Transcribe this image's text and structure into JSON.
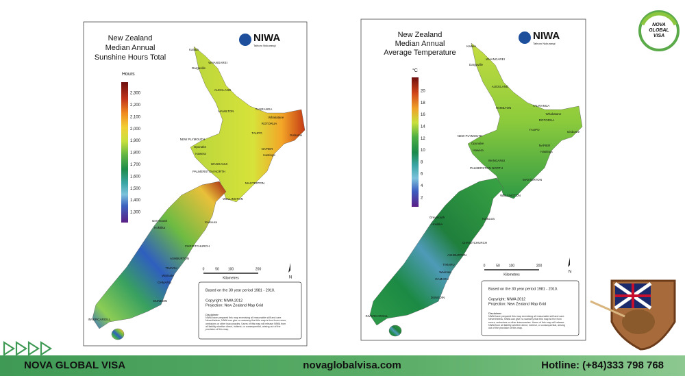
{
  "maps": [
    {
      "title": [
        "New Zealand",
        "Median Annual",
        "Sunshine Hours Total"
      ],
      "logo": {
        "name": "NIWA",
        "tagline": "Taihoro Nukurangi"
      },
      "legend": {
        "unit": "Hours",
        "labels": [
          "2,300",
          "2,200",
          "2,100",
          "2,000",
          "1,900",
          "1,800",
          "1,700",
          "1,600",
          "1,500",
          "1,400",
          "1,300"
        ]
      },
      "places": [
        "Kaitaia",
        "Dargaville",
        "WHANGAREI",
        "AUCKLAND",
        "HAMILTON",
        "TAURANGA",
        "ROTORUA",
        "Whakatane",
        "TAUPO",
        "Gisborne",
        "NEW PLYMOUTH",
        "Opunake",
        "Hawera",
        "WANGANUI",
        "NAPIER",
        "Hastings",
        "PALMERSTON NORTH",
        "MASTERTON",
        "WELLINGTON",
        "Greymouth",
        "Hokitika",
        "Kaikoura",
        "CHRISTCHURCH",
        "ASHBURTON",
        "TIMARU",
        "Waimate",
        "OAMARU",
        "DUNEDIN",
        "INVERCARGILL"
      ],
      "scale": {
        "ticks": [
          "0",
          "50",
          "100",
          "200"
        ],
        "unit": "Kilometres"
      },
      "north": "N",
      "notes": {
        "period": "Based on the 30 year period 1981 - 2010.",
        "copyright": "Copyright: NIWA 2012",
        "projection": "Projection: New Zealand Map Grid",
        "disclaimer_title": "Disclaimer:",
        "disclaimer": "NIWA have prepared this map exercising all reasonable skill and care. Nevertheless, NIWA can give no warranty that this map is free from errors, omissions or other inaccuracies. Users of this map will release NIWA from all liability whether direct, indirect, or consequential, arising out of the provision of this map."
      }
    },
    {
      "title": [
        "New Zealand",
        "Median Annual",
        "Average Temperature"
      ],
      "logo": {
        "name": "NIWA",
        "tagline": "Taihoro Nukurangi"
      },
      "legend": {
        "unit": "°C",
        "labels": [
          "20",
          "18",
          "16",
          "14",
          "12",
          "10",
          "8",
          "6",
          "4",
          "2"
        ]
      },
      "places": [
        "Kaitaia",
        "Dargaville",
        "WHANGAREI",
        "AUCKLAND",
        "HAMILTON",
        "TAURANGA",
        "ROTORUA",
        "Whakatane",
        "TAUPO",
        "Gisborne",
        "NEW PLYMOUTH",
        "Opunake",
        "Hawera",
        "WANGANUI",
        "NAPIER",
        "Hastings",
        "PALMERSTON NORTH",
        "MASTERTON",
        "WELLINGTON",
        "Greymouth",
        "Hokitika",
        "Kaikoura",
        "CHRISTCHURCH",
        "ASHBURTON",
        "TIMARU",
        "Waimate",
        "OAMARU",
        "DUNEDIN",
        "INVERCARGILL"
      ],
      "scale": {
        "ticks": [
          "0",
          "50",
          "100",
          "200"
        ],
        "unit": "Kilometres"
      },
      "north": "N",
      "notes": {
        "period": "Based on the 30 year period 1981 - 2010.",
        "copyright": "Copyright: NIWA 2012",
        "projection": "Projection: New Zealand Map Grid",
        "disclaimer_title": "Disclaimer:",
        "disclaimer": "NIWA have prepared this map exercising all reasonable skill and care. Nevertheless, NIWA can give no warranty that this map is free from errors, omissions or other inaccuracies. Users of this map will release NIWA from all liability whether direct, indirect, or consequential, arising out of the provision of this map."
      }
    }
  ],
  "brand": {
    "badge": [
      "NOVA",
      "GLOBAL",
      "VISA"
    ]
  },
  "footer": {
    "name": "NOVA GLOBAL VISA",
    "website": "novaglobalvisa.com",
    "hotline": "Hotline: (+84)333 798 768"
  }
}
